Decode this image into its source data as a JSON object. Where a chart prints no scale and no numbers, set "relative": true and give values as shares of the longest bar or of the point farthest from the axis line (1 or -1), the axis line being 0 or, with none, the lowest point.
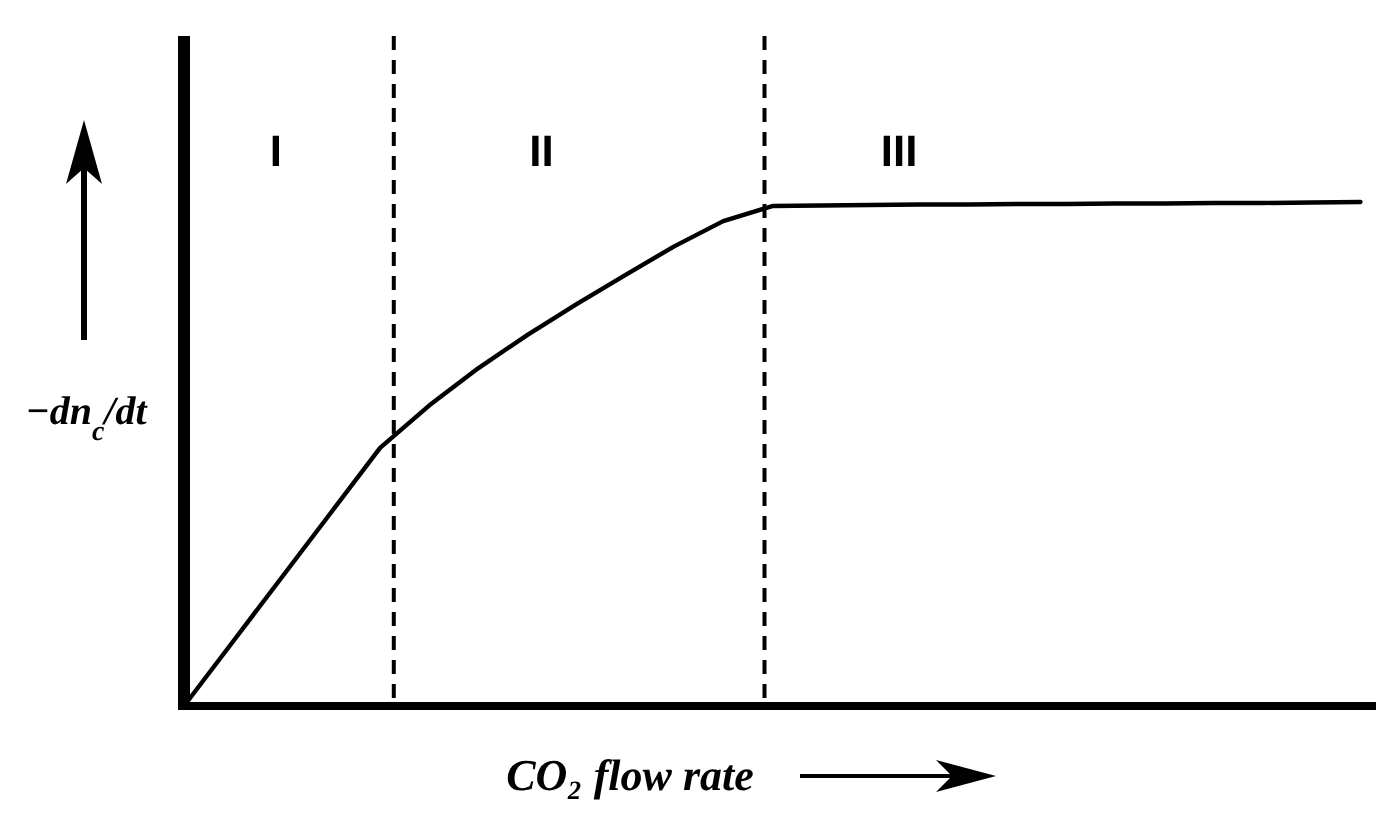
{
  "chart_data": {
    "type": "line",
    "relative": true,
    "xlabel": "CO₂ flow rate",
    "ylabel": "−dn$_{c}$/dt",
    "color": "#000000",
    "line_style": "solid",
    "marker": "none",
    "categories": [
      null,
      null,
      null,
      null,
      null,
      null,
      null,
      null,
      null,
      null,
      null,
      null,
      null,
      null,
      null,
      null,
      null,
      null,
      null,
      null,
      null,
      null,
      null,
      null,
      null
    ],
    "values": [
      0,
      0.128,
      0.256,
      0.384,
      0.512,
      0.596,
      0.67,
      0.736,
      0.797,
      0.855,
      0.912,
      0.962,
      0.992,
      0.993,
      0.994,
      0.995,
      0.995,
      0.996,
      0.996,
      0.997,
      0.997,
      0.998,
      0.998,
      0.999,
      1
    ],
    "annotations": [
      "I",
      "II",
      "III"
    ]
  }
}
